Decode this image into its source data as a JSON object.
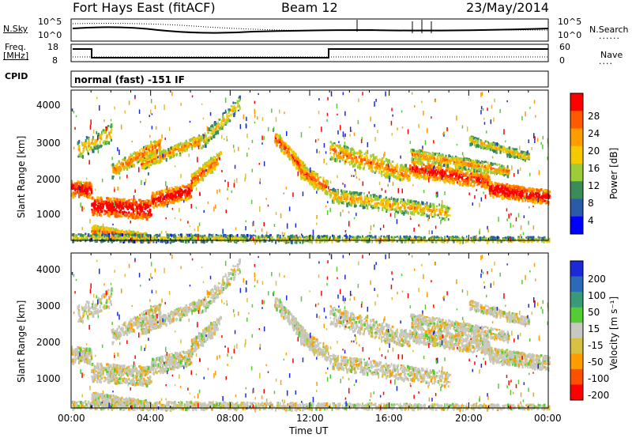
{
  "header": {
    "title": "Fort Hays East (fitACF)",
    "beam": "Beam 12",
    "date": "23/May/2014"
  },
  "panels": {
    "nsky_label": "N.Sky",
    "nsearch_label": "N.Search",
    "nsky_ticks": [
      "10^5",
      "10^0"
    ],
    "nsky_right_ticks": [
      "10^5",
      "10^0"
    ],
    "freq_label_line1": "Freq.",
    "freq_label_line2": "[MHz]",
    "freq_ticks": [
      "18",
      "8"
    ],
    "nave_label": "Nave",
    "nave_ticks": [
      "60",
      "0"
    ],
    "cpid_label": "CPID",
    "cpid_text": "normal (fast) -151 IF"
  },
  "chart_data": [
    {
      "type": "heatmap",
      "name": "power",
      "ylabel": "Slant Range [km]",
      "xlabel": "",
      "x_ticks": [],
      "y_ticks": [
        "4000",
        "3000",
        "2000",
        "1000"
      ],
      "ylim": [
        180,
        4500
      ],
      "xlim": [
        0,
        24
      ],
      "colorbar": {
        "label": "Power [dB]",
        "ticks": [
          "28",
          "24",
          "20",
          "16",
          "12",
          "8",
          "4"
        ],
        "colors": [
          "#ff0000",
          "#ff5a00",
          "#ff9c00",
          "#f5c800",
          "#9ccc3a",
          "#3c8c5a",
          "#2a5aa8",
          "#0000ff"
        ]
      }
    },
    {
      "type": "heatmap",
      "name": "velocity",
      "ylabel": "Slant Range [km]",
      "xlabel": "Time UT",
      "x_ticks": [
        "00:00",
        "04:00",
        "08:00",
        "12:00",
        "16:00",
        "20:00",
        "00:00"
      ],
      "y_ticks": [
        "4000",
        "3000",
        "2000",
        "1000"
      ],
      "ylim": [
        180,
        4500
      ],
      "xlim": [
        0,
        24
      ],
      "colorbar": {
        "label": "Velocity [m s⁻¹]",
        "ticks": [
          "200",
          "100",
          "50",
          "15",
          "-15",
          "-50",
          "-100",
          "-200"
        ],
        "colors": [
          "#1a2ad8",
          "#2a6ab8",
          "#3a9a78",
          "#55cc33",
          "#c8c8c0",
          "#d8c040",
          "#ff9c00",
          "#ff5000",
          "#ff0000"
        ]
      }
    }
  ]
}
